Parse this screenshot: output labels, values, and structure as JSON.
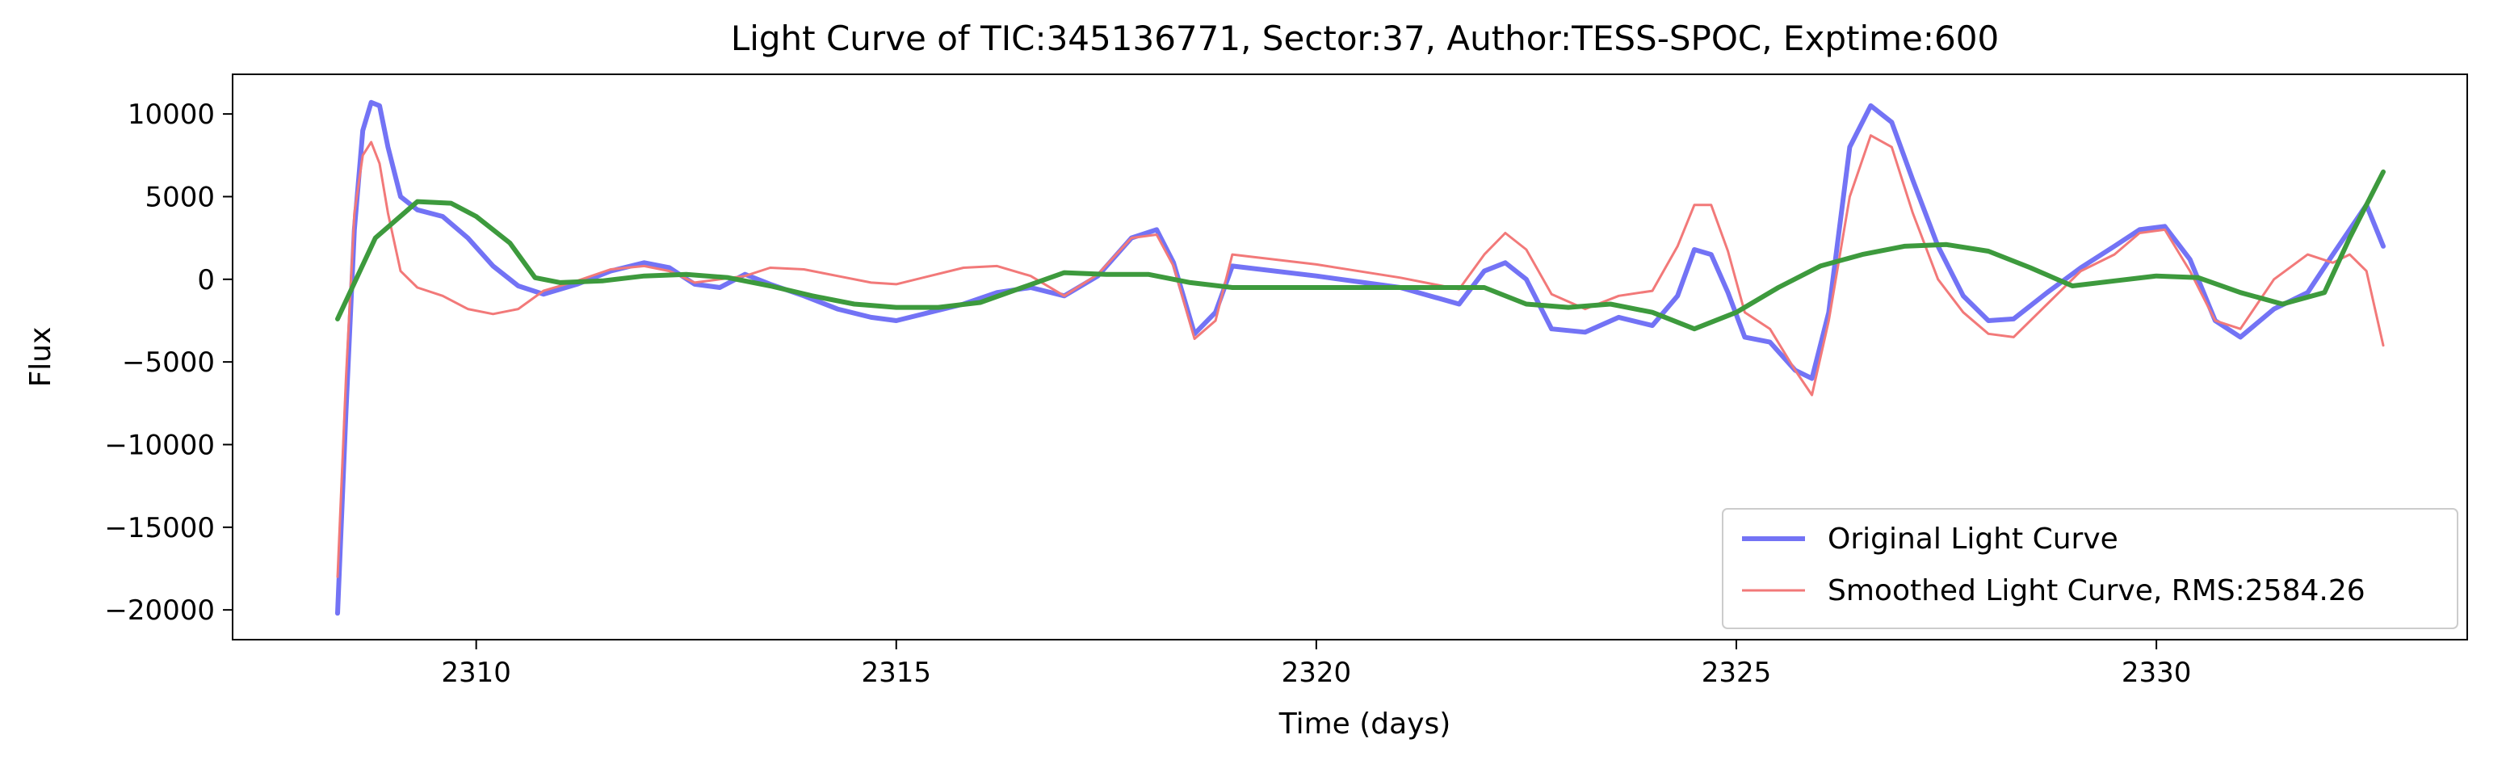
{
  "chart_data": {
    "type": "line",
    "title": "Light Curve of TIC:345136771, Sector:37, Author:TESS-SPOC, Exptime:600",
    "xlabel": "Time (days)",
    "ylabel": "Flux",
    "xlim": [
      2307.1,
      2333.7
    ],
    "ylim": [
      -21800,
      12400
    ],
    "xticks": [
      2310,
      2315,
      2320,
      2325,
      2330
    ],
    "yticks": [
      10000,
      5000,
      0,
      -5000,
      -10000,
      -15000,
      -20000
    ],
    "ytick_labels": [
      "10000",
      "5000",
      "0",
      "−5000",
      "−10000",
      "−15000",
      "−20000"
    ],
    "grid": false,
    "legend_position": "lower-right",
    "series": [
      {
        "name": "Original Light Curve",
        "color": "#7373f5",
        "x": [
          2308.35,
          2308.45,
          2308.55,
          2308.65,
          2308.75,
          2308.85,
          2308.95,
          2309.1,
          2309.3,
          2309.6,
          2309.9,
          2310.2,
          2310.5,
          2310.8,
          2311.2,
          2311.6,
          2312.0,
          2312.3,
          2312.6,
          2312.9,
          2313.2,
          2313.5,
          2313.9,
          2314.3,
          2314.7,
          2315.0,
          2315.4,
          2315.8,
          2316.2,
          2316.6,
          2317.0,
          2317.4,
          2317.8,
          2318.1,
          2318.3,
          2318.55,
          2318.8,
          2319.0,
          2320.0,
          2321.0,
          2321.7,
          2322.0,
          2322.25,
          2322.5,
          2322.8,
          2323.2,
          2323.6,
          2324.0,
          2324.3,
          2324.5,
          2324.7,
          2324.9,
          2325.1,
          2325.4,
          2325.7,
          2325.9,
          2326.1,
          2326.35,
          2326.6,
          2326.85,
          2327.1,
          2327.4,
          2327.7,
          2328.0,
          2328.3,
          2328.7,
          2329.1,
          2329.5,
          2329.8,
          2330.1,
          2330.4,
          2330.7,
          2331.0,
          2331.4,
          2331.8,
          2332.1,
          2332.3,
          2332.5,
          2332.7
        ],
        "y": [
          -20200,
          -8000,
          3000,
          9000,
          10700,
          10500,
          8000,
          5000,
          4200,
          3800,
          2500,
          800,
          -400,
          -900,
          -300,
          500,
          1000,
          700,
          -300,
          -500,
          300,
          -300,
          -1000,
          -1800,
          -2300,
          -2500,
          -2000,
          -1500,
          -800,
          -500,
          -1000,
          200,
          2500,
          3000,
          1000,
          -3300,
          -2000,
          800,
          200,
          -500,
          -1500,
          500,
          1000,
          0,
          -3000,
          -3200,
          -2300,
          -2800,
          -1000,
          1800,
          1500,
          -800,
          -3500,
          -3800,
          -5500,
          -6000,
          -2000,
          8000,
          10500,
          9500,
          6000,
          2000,
          -1000,
          -2500,
          -2400,
          -800,
          700,
          2000,
          3000,
          3200,
          1200,
          -2500,
          -3500,
          -1800,
          -800,
          1500,
          3000,
          4500,
          2000
        ]
      },
      {
        "name": "Smoothed Light Curve, RMS:2584.26",
        "color": "#f27979",
        "x": [
          2308.35,
          2308.45,
          2308.55,
          2308.65,
          2308.75,
          2308.85,
          2308.95,
          2309.1,
          2309.3,
          2309.6,
          2309.9,
          2310.2,
          2310.5,
          2310.8,
          2311.2,
          2311.6,
          2312.0,
          2312.3,
          2312.6,
          2312.9,
          2313.2,
          2313.5,
          2313.9,
          2314.3,
          2314.7,
          2315.0,
          2315.4,
          2315.8,
          2316.2,
          2316.6,
          2317.0,
          2317.4,
          2317.8,
          2318.1,
          2318.3,
          2318.55,
          2318.8,
          2319.0,
          2320.0,
          2321.0,
          2321.7,
          2322.0,
          2322.25,
          2322.5,
          2322.8,
          2323.2,
          2323.6,
          2324.0,
          2324.3,
          2324.5,
          2324.7,
          2324.9,
          2325.1,
          2325.4,
          2325.7,
          2325.9,
          2326.1,
          2326.35,
          2326.6,
          2326.85,
          2327.1,
          2327.4,
          2327.7,
          2328.0,
          2328.3,
          2328.7,
          2329.1,
          2329.5,
          2329.8,
          2330.1,
          2330.4,
          2330.7,
          2331.0,
          2331.4,
          2331.8,
          2332.1,
          2332.3,
          2332.5,
          2332.7
        ],
        "y": [
          -18000,
          -6000,
          4000,
          7500,
          8300,
          7000,
          4000,
          500,
          -500,
          -1000,
          -1800,
          -2100,
          -1800,
          -700,
          -100,
          600,
          800,
          500,
          -200,
          0,
          200,
          700,
          600,
          200,
          -200,
          -300,
          200,
          700,
          800,
          200,
          -1000,
          300,
          2500,
          2700,
          800,
          -3600,
          -2500,
          1500,
          900,
          100,
          -600,
          1500,
          2800,
          1800,
          -900,
          -1800,
          -1000,
          -700,
          2000,
          4500,
          4500,
          1700,
          -2000,
          -3000,
          -5500,
          -7000,
          -2500,
          5000,
          8700,
          8000,
          4000,
          0,
          -2000,
          -3300,
          -3500,
          -1500,
          500,
          1500,
          2800,
          3000,
          500,
          -2500,
          -3000,
          0,
          1500,
          1000,
          1500,
          500,
          -4000
        ]
      },
      {
        "name": "",
        "color": "#3d9a3d",
        "x": [
          2308.35,
          2308.8,
          2309.3,
          2309.7,
          2310.0,
          2310.4,
          2310.7,
          2311.0,
          2311.5,
          2312.0,
          2312.5,
          2313.0,
          2313.5,
          2314.0,
          2314.5,
          2315.0,
          2315.5,
          2316.0,
          2316.5,
          2317.0,
          2317.5,
          2318.0,
          2318.5,
          2319.0,
          2319.5,
          2320.0,
          2320.5,
          2321.0,
          2321.5,
          2322.0,
          2322.5,
          2323.0,
          2323.5,
          2324.0,
          2324.5,
          2325.0,
          2325.5,
          2326.0,
          2326.5,
          2327.0,
          2327.5,
          2328.0,
          2328.5,
          2329.0,
          2329.5,
          2330.0,
          2330.5,
          2331.0,
          2331.5,
          2332.0,
          2332.3,
          2332.7
        ],
        "y": [
          -2400,
          2500,
          4700,
          4600,
          3800,
          2200,
          100,
          -200,
          -100,
          200,
          300,
          100,
          -400,
          -1000,
          -1500,
          -1700,
          -1700,
          -1400,
          -500,
          400,
          300,
          300,
          -200,
          -500,
          -500,
          -500,
          -500,
          -500,
          -500,
          -500,
          -1500,
          -1700,
          -1500,
          -2000,
          -3000,
          -2000,
          -500,
          800,
          1500,
          2000,
          2100,
          1700,
          700,
          -400,
          -100,
          200,
          100,
          -800,
          -1500,
          -800,
          2500,
          6500
        ]
      }
    ]
  },
  "legend": {
    "items": [
      {
        "label": "Original Light Curve",
        "color": "#7373f5"
      },
      {
        "label": "Smoothed Light Curve, RMS:2584.26",
        "color": "#f27979"
      }
    ]
  }
}
